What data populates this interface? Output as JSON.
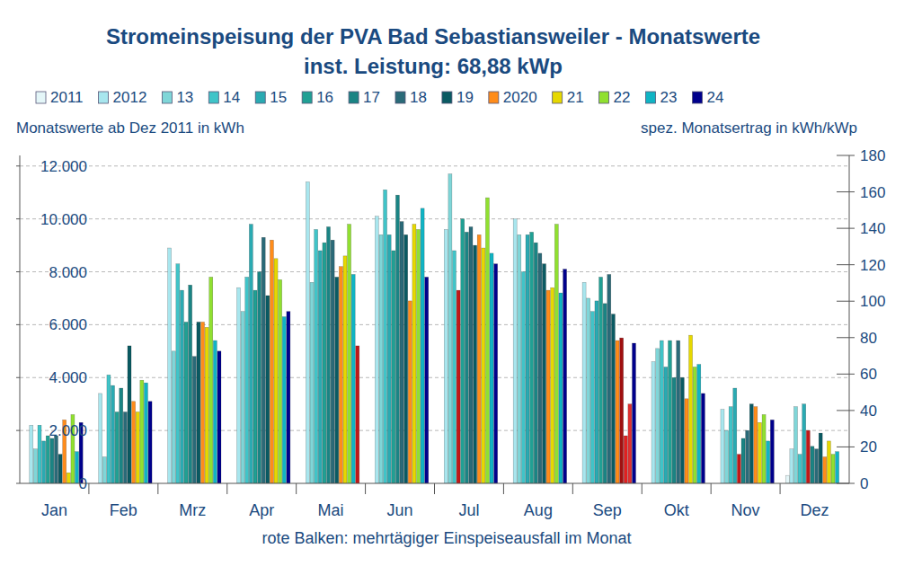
{
  "chart_data": {
    "type": "bar",
    "title": "Stromeinspeisung der PVA Bad Sebastiansweiler - Monatswerte",
    "subtitle": "inst. Leistung: 68,88 kWp",
    "y_label": "Monatswerte ab Dez 2011 in kWh",
    "y2_label": "spez. Monatsertrag in kWh/kWp",
    "annotation": "rote Balken: mehrtägiger Einspeiseausfall im Monat",
    "categories": [
      "Jan",
      "Feb",
      "Mrz",
      "Apr",
      "Mai",
      "Jun",
      "Jul",
      "Aug",
      "Sep",
      "Okt",
      "Nov",
      "Dez"
    ],
    "ylim": [
      0,
      12400
    ],
    "yticks": [
      0,
      {
        "value": 2000,
        "label": "2.000"
      },
      {
        "value": 4000,
        "label": "4.000"
      },
      {
        "value": 6000,
        "label": "6.000"
      },
      {
        "value": 8000,
        "label": "8.000"
      },
      {
        "value": 10000,
        "label": "10.000"
      },
      {
        "value": 12000,
        "label": "12.000"
      }
    ],
    "y2lim": [
      0,
      180
    ],
    "y2ticks": [
      0,
      20,
      40,
      60,
      80,
      100,
      120,
      140,
      160,
      180
    ],
    "grid": true,
    "legend": "top",
    "series": [
      {
        "name": "2011",
        "color": "#e4f6f8",
        "values": [
          null,
          null,
          null,
          null,
          null,
          null,
          null,
          null,
          null,
          null,
          null,
          300
        ]
      },
      {
        "name": "2012",
        "color": "#a8e6ee",
        "values": [
          2200,
          3400,
          8900,
          7400,
          11400,
          10100,
          9600,
          10000,
          7600,
          4600,
          2800,
          1300
        ]
      },
      {
        "name": "13",
        "color": "#7fd6d8",
        "values": [
          1300,
          1000,
          5000,
          6500,
          7600,
          9400,
          11700,
          9400,
          7000,
          5100,
          2000,
          2900
        ]
      },
      {
        "name": "14",
        "color": "#40c4c8",
        "values": [
          2200,
          4100,
          8300,
          7800,
          9600,
          11100,
          8800,
          8000,
          6500,
          5400,
          2900,
          1100
        ]
      },
      {
        "name": "15",
        "color": "#2aaab2",
        "values": [
          1600,
          3700,
          7300,
          9800,
          8800,
          9400,
          7300,
          9400,
          6900,
          4400,
          3600,
          3000
        ],
        "colors": [
          "#2aaab2",
          "#2aaab2",
          "#2aaab2",
          "#2aaab2",
          "#2aaab2",
          "#2aaab2",
          "#c01818",
          "#2aaab2",
          "#2aaab2",
          "#2aaab2",
          "#2aaab2",
          "#2aaab2"
        ]
      },
      {
        "name": "16",
        "color": "#20a094",
        "values": [
          1800,
          2700,
          6100,
          7300,
          9100,
          8800,
          10000,
          9500,
          7800,
          5400,
          1100,
          2000
        ],
        "colors": [
          "#20a094",
          "#20a094",
          "#20a094",
          "#20a094",
          "#20a094",
          "#20a094",
          "#20a094",
          "#20a094",
          "#20a094",
          "#20a094",
          "#c01818",
          "#c01818"
        ]
      },
      {
        "name": "17",
        "color": "#1a8484",
        "values": [
          1700,
          3600,
          7500,
          8000,
          9700,
          10900,
          9500,
          9100,
          6800,
          4000,
          1700,
          1400
        ]
      },
      {
        "name": "18",
        "color": "#2a6a78",
        "values": [
          1800,
          2700,
          4800,
          9300,
          9200,
          9900,
          9700,
          8700,
          7900,
          5400,
          2000,
          1300
        ]
      },
      {
        "name": "19",
        "color": "#0a5a62",
        "values": [
          1100,
          5200,
          6100,
          7100,
          7800,
          9400,
          9000,
          8300,
          6400,
          4000,
          3000,
          1900
        ]
      },
      {
        "name": "2020",
        "color": "#ff8c1a",
        "values": [
          2400,
          3100,
          6100,
          9200,
          8200,
          6900,
          9400,
          7300,
          5400,
          3200,
          2900,
          1000
        ]
      },
      {
        "name": "21",
        "color": "#e6d800",
        "values": [
          400,
          2700,
          5900,
          8500,
          8600,
          9800,
          8900,
          7400,
          5500,
          5600,
          2300,
          1600
        ],
        "colors": [
          "#e6d800",
          "#e6d800",
          "#e6d800",
          "#e6d800",
          "#e6d800",
          "#e6d800",
          "#e6d800",
          "#e6d800",
          "#a01010",
          "#e6d800",
          "#e6d800",
          "#e6d800"
        ]
      },
      {
        "name": "22",
        "color": "#90e030",
        "values": [
          2600,
          3900,
          7800,
          7700,
          9800,
          9600,
          10800,
          9800,
          1800,
          4400,
          2600,
          1100
        ],
        "colors": [
          "#90e030",
          "#90e030",
          "#90e030",
          "#90e030",
          "#90e030",
          "#90e030",
          "#90e030",
          "#90e030",
          "#e02020",
          "#90e030",
          "#90e030",
          "#90e030"
        ]
      },
      {
        "name": "23",
        "color": "#10b4c4",
        "values": [
          1200,
          3800,
          5400,
          6300,
          7900,
          10400,
          8700,
          7200,
          3000,
          4500,
          1600,
          1200
        ],
        "colors": [
          "#10b4c4",
          "#10b4c4",
          "#10b4c4",
          "#10b4c4",
          "#10b4c4",
          "#10b4c4",
          "#10b4c4",
          "#10b4c4",
          "#e03030",
          "#10b4c4",
          "#10b4c4",
          "#10b4c4"
        ]
      },
      {
        "name": "24",
        "color": "#00008c",
        "values": [
          2300,
          3100,
          5000,
          6500,
          5200,
          7800,
          8300,
          8100,
          5300,
          3400,
          2400,
          null
        ],
        "colors": [
          "#00008c",
          "#00008c",
          "#00008c",
          "#00008c",
          "#c01818",
          "#00008c",
          "#00008c",
          "#00008c",
          "#00008c",
          "#00008c",
          "#00008c",
          "#00008c"
        ]
      }
    ]
  }
}
